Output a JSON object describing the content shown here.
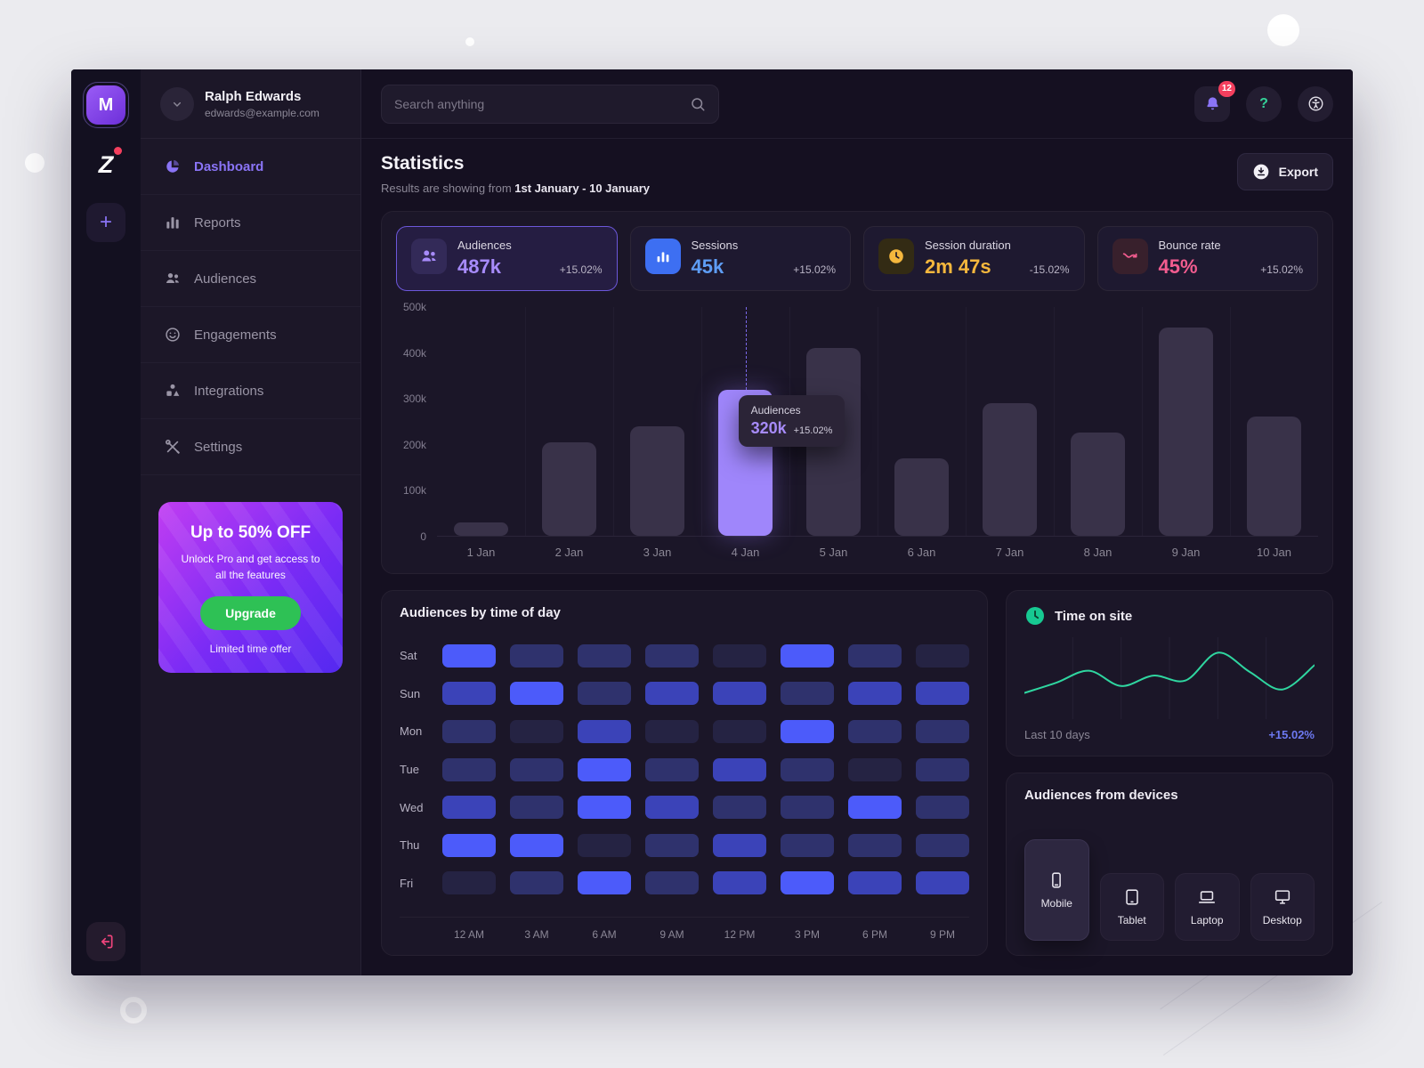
{
  "brand": {
    "logo_letter": "M",
    "secondary_logo_letter": "Z",
    "add_glyph": "+"
  },
  "sidebar": {
    "profile": {
      "name": "Ralph Edwards",
      "email": "edwards@example.com"
    },
    "items": [
      {
        "label": "Dashboard"
      },
      {
        "label": "Reports"
      },
      {
        "label": "Audiences"
      },
      {
        "label": "Engagements"
      },
      {
        "label": "Integrations"
      },
      {
        "label": "Settings"
      }
    ],
    "promo": {
      "title": "Up to 50% OFF",
      "subtitle": "Unlock Pro and get access to all the features",
      "button_label": "Upgrade",
      "footnote": "Limited time offer"
    }
  },
  "topbar": {
    "search_placeholder": "Search anything",
    "notification_count": "12",
    "help_glyph": "?"
  },
  "header": {
    "title": "Statistics",
    "subtitle_prefix": "Results are showing from ",
    "subtitle_range": "1st January - 10 January",
    "export_label": "Export"
  },
  "stats": [
    {
      "label": "Audiences",
      "value": "487k",
      "delta": "+15.02%"
    },
    {
      "label": "Sessions",
      "value": "45k",
      "delta": "+15.02%"
    },
    {
      "label": "Session duration",
      "value": "2m 47s",
      "delta": "-15.02%"
    },
    {
      "label": "Bounce rate",
      "value": "45%",
      "delta": "+15.02%"
    }
  ],
  "chart_data": [
    {
      "id": "audiences_daily",
      "type": "bar",
      "title": "Audiences per day",
      "categories": [
        "1 Jan",
        "2 Jan",
        "3 Jan",
        "4 Jan",
        "5 Jan",
        "6 Jan",
        "7 Jan",
        "8 Jan",
        "9 Jan",
        "10 Jan"
      ],
      "values": [
        30,
        205,
        240,
        320,
        410,
        170,
        290,
        225,
        455,
        260
      ],
      "unit": "k",
      "ylim": [
        0,
        500
      ],
      "yticks": [
        "0",
        "100k",
        "200k",
        "300k",
        "400k",
        "500k"
      ],
      "highlight_index": 3,
      "tooltip": {
        "label": "Audiences",
        "value": "320k",
        "delta": "+15.02%"
      }
    },
    {
      "id": "audiences_by_time",
      "type": "heatmap",
      "title": "Audiences by time of day",
      "rows": [
        "Sat",
        "Sun",
        "Mon",
        "Tue",
        "Wed",
        "Thu",
        "Fri"
      ],
      "cols": [
        "12 AM",
        "3 AM",
        "6 AM",
        "9 AM",
        "12 PM",
        "3 PM",
        "6 PM",
        "9 PM"
      ],
      "values": [
        [
          3,
          1,
          1,
          1,
          0,
          3,
          1,
          0
        ],
        [
          2,
          3,
          1,
          2,
          2,
          1,
          2,
          2
        ],
        [
          1,
          0,
          2,
          0,
          0,
          3,
          1,
          1
        ],
        [
          1,
          1,
          3,
          1,
          2,
          1,
          0,
          1
        ],
        [
          2,
          1,
          3,
          2,
          1,
          1,
          3,
          1
        ],
        [
          3,
          3,
          0,
          1,
          2,
          1,
          1,
          1
        ],
        [
          0,
          1,
          3,
          1,
          2,
          3,
          2,
          2
        ]
      ],
      "palette": [
        "#252343",
        "#2f326d",
        "#3b43b8",
        "#4c5bfa"
      ]
    },
    {
      "id": "time_on_site",
      "type": "line",
      "title": "Time on site",
      "x": [
        1,
        2,
        3,
        4,
        5,
        6,
        7,
        8,
        9,
        10
      ],
      "values": [
        30,
        45,
        62,
        40,
        55,
        48,
        88,
        60,
        35,
        70
      ],
      "ylim": [
        0,
        100
      ],
      "color": "#2fd6a0",
      "footer_left": "Last 10 days",
      "footer_right": "+15.02%"
    }
  ],
  "devices": {
    "title": "Audiences from devices",
    "items": [
      {
        "label": "Mobile",
        "selected": true
      },
      {
        "label": "Tablet",
        "selected": false
      },
      {
        "label": "Laptop",
        "selected": false
      },
      {
        "label": "Desktop",
        "selected": false
      }
    ]
  },
  "colors": {
    "accent_purple": "#8a74f6",
    "value_blue": "#5e9df5",
    "value_yellow": "#f5b73d",
    "value_pink": "#f25c8f",
    "upgrade_green": "#2ec155",
    "heat_bright": "#4c5bfa",
    "line_green": "#2fd6a0",
    "badge_red": "#f43f5e"
  }
}
